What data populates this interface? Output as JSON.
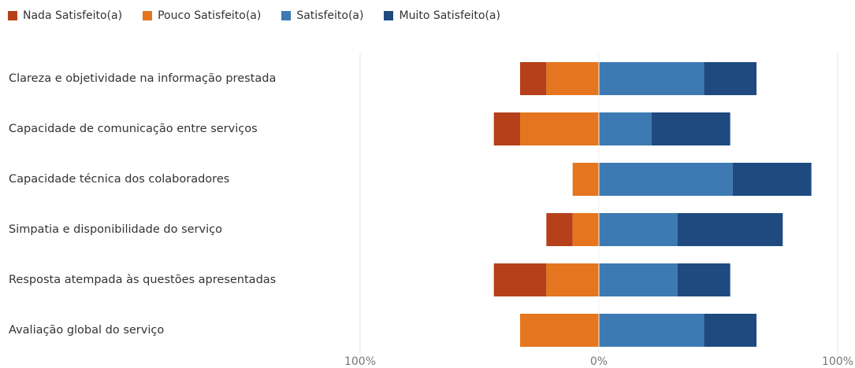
{
  "chart_data": {
    "type": "bar",
    "orientation": "horizontal",
    "stacked": "diverging",
    "title": "",
    "xlabel": "",
    "ylabel": "",
    "xlim": [
      -100,
      100
    ],
    "x_ticks": [
      "100%",
      "0%",
      "100%"
    ],
    "legend_position": "top-left",
    "grid": false,
    "categories": [
      "Clareza e objetividade na informação prestada",
      "Capacidade de comunicação entre serviços",
      "Capacidade técnica dos colaboradores",
      "Simpatia e disponibilidade do serviço",
      "Resposta atempada às questões apresentadas",
      "Avaliação global do serviço"
    ],
    "series": [
      {
        "name": "Nada Satisfeito(a)",
        "color": "#b5401a",
        "side": "negative",
        "values": [
          11,
          11,
          0,
          11,
          22,
          0
        ]
      },
      {
        "name": "Pouco Satisfeito(a)",
        "color": "#e5761f",
        "side": "negative",
        "values": [
          22,
          33,
          11,
          11,
          22,
          33
        ]
      },
      {
        "name": "Satisfeito(a)",
        "color": "#3d7ab4",
        "side": "positive",
        "values": [
          44,
          22,
          56,
          33,
          33,
          44
        ]
      },
      {
        "name": "Muito Satisfeito(a)",
        "color": "#1e4a80",
        "side": "positive",
        "values": [
          22,
          33,
          33,
          44,
          22,
          22
        ]
      }
    ]
  }
}
